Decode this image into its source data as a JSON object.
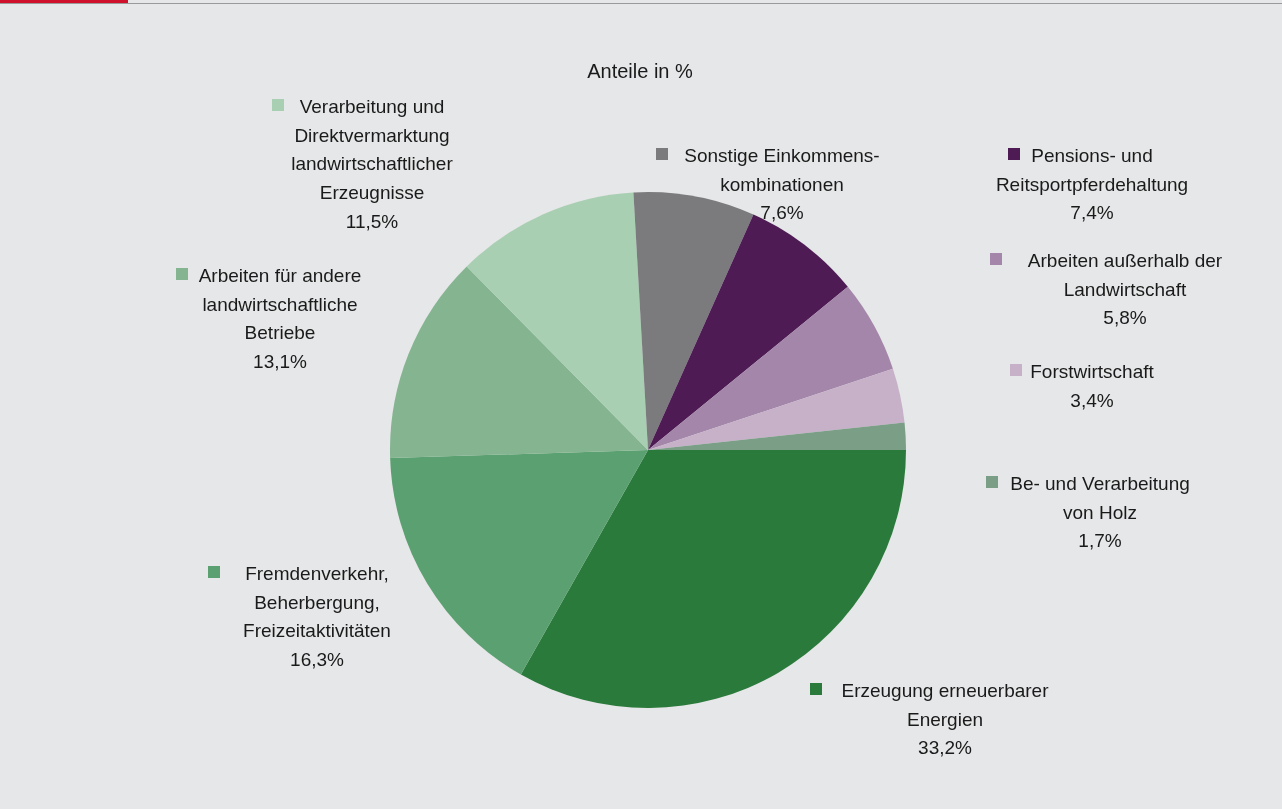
{
  "chart_data": {
    "type": "pie",
    "title": "Anteile in %",
    "categories": [
      "Erzeugung erneuerbarer\nEnergien",
      "Fremdenverkehr,\nBeherbergung,\nFreizeitaktivitäten",
      "Arbeiten für andere\nlandwirtschaftliche\nBetriebe",
      "Verarbeitung und\nDirektvermarktung\nlandwirtschaftlicher\nErzeugnisse",
      "Sonstige Einkommens-\nkombinationen",
      "Pensions- und\nReitsportpferdehaltung",
      "Arbeiten außerhalb der\nLandwirtschaft",
      "Forstwirtschaft",
      "Be- und Verarbeitung\nvon Holz"
    ],
    "values": [
      33.2,
      16.3,
      13.1,
      11.5,
      7.6,
      7.4,
      5.8,
      3.4,
      1.7
    ],
    "value_labels": [
      "33,2%",
      "16,3%",
      "13,1%",
      "11,5%",
      "7,6%",
      "7,4%",
      "5,8%",
      "3,4%",
      "1,7%"
    ],
    "legend": "right",
    "colors": [
      "#2a7a3b",
      "#5ba070",
      "#84b590",
      "#a9cfb3",
      "#7b7b7e",
      "#4e1b55",
      "#a386a9",
      "#c6b1c8",
      "#7a9e86"
    ]
  }
}
